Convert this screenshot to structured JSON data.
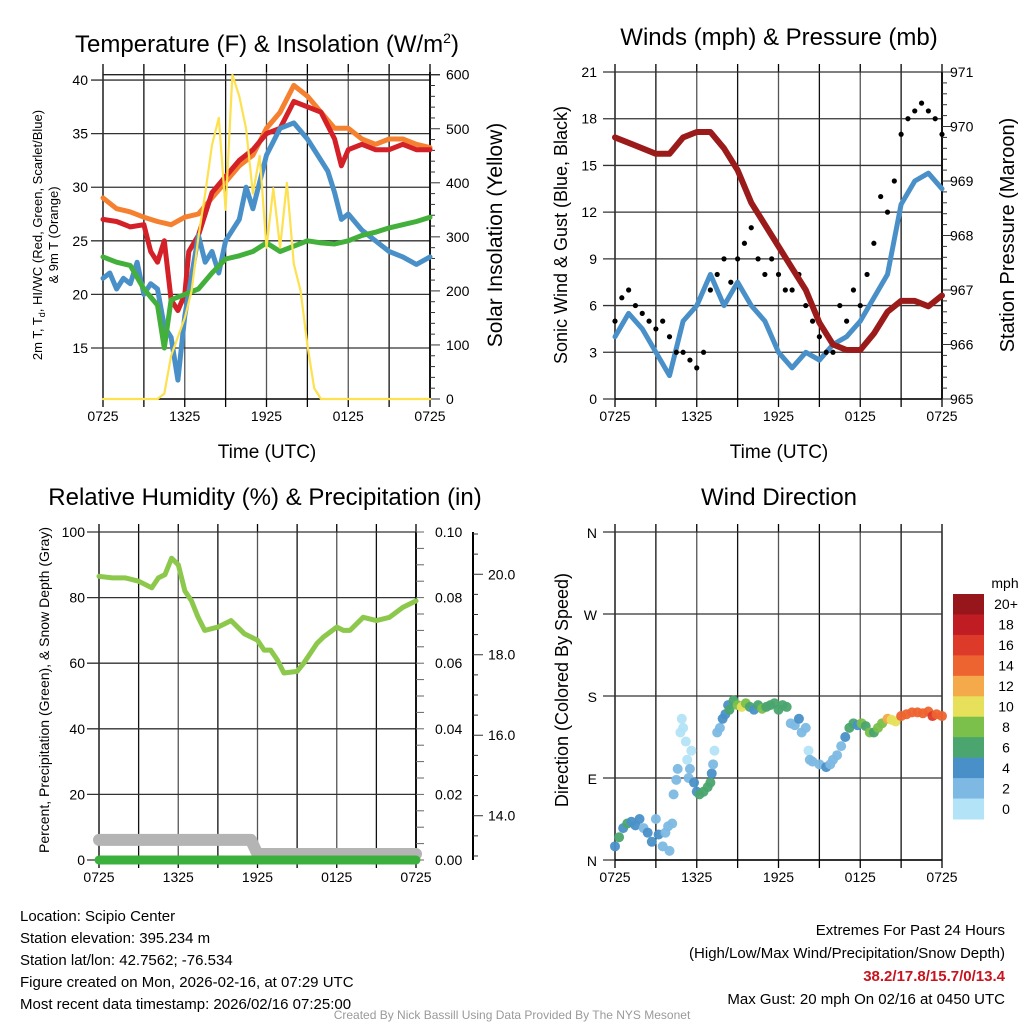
{
  "colors": {
    "red": "#d42027",
    "orange": "#f58030",
    "blue": "#4a90c8",
    "green": "#44b03c",
    "yellow": "#fde14e",
    "black": "#000000",
    "maroon": "#9b1b1b",
    "rh": "#8cc84b",
    "snow": "#b4b4b4",
    "precip": "#3cb03c"
  },
  "x_ticks": {
    "hours": [
      0,
      6,
      12,
      18,
      24
    ],
    "labels": [
      "0725",
      "1325",
      "1925",
      "0125",
      "0725"
    ]
  },
  "chart_data": [
    {
      "id": "temperature",
      "type": "line",
      "title": {
        "main": "Temperature (F) & Insolation (W/m",
        "sup": "2",
        "close": ")"
      },
      "xlabel": "Time (UTC)",
      "ylabel": {
        "l1a": "2m T, T",
        "l1sub": "d",
        "l1b": ", HI/WC (Red, Green, Scarlet/Blue)",
        "l2": "& 9m T (Orange)"
      },
      "ylabel_right": "Solar Insolation (Yellow)",
      "ylim": [
        10.24,
        40.75
      ],
      "ylim_right": [
        0,
        605
      ],
      "yticks": [
        15,
        20,
        25,
        30,
        35,
        40
      ],
      "yticks_right": [
        0,
        100,
        200,
        300,
        400,
        500,
        600
      ],
      "series": [
        {
          "name": "9m T",
          "color": "orange",
          "axis": "left",
          "x": [
            0,
            1,
            2,
            3,
            4,
            5,
            6,
            7,
            8,
            9,
            10,
            11,
            12,
            13,
            14,
            15,
            16,
            17,
            18,
            19,
            20,
            21,
            22,
            23,
            24
          ],
          "y": [
            29,
            28,
            27.7,
            27.2,
            26.8,
            26.5,
            27.2,
            27.5,
            29,
            30.5,
            32,
            33,
            35.5,
            37,
            39.5,
            38.5,
            37,
            35.5,
            35.5,
            34.5,
            34,
            34.5,
            34.5,
            34,
            33.7
          ]
        },
        {
          "name": "2m T",
          "color": "red",
          "axis": "left",
          "x": [
            0,
            1,
            2,
            3,
            3.5,
            4,
            4.5,
            5,
            5.5,
            6,
            6.3,
            7,
            8,
            9,
            10,
            11,
            12,
            13,
            14,
            15,
            16,
            17,
            17.5,
            18,
            19,
            20,
            21,
            22,
            23,
            24
          ],
          "y": [
            27,
            26.8,
            26.3,
            26.5,
            24,
            23,
            25,
            19.5,
            18.5,
            20,
            24,
            25.5,
            29.5,
            31,
            32.5,
            33.5,
            35,
            35.5,
            38,
            37.5,
            37,
            34.5,
            32,
            33.5,
            34,
            33.5,
            33.5,
            34,
            33.5,
            33.5
          ]
        },
        {
          "name": "HI/WC",
          "color": "blue",
          "axis": "left",
          "x": [
            0,
            0.5,
            1,
            1.5,
            2,
            2.5,
            3,
            3.5,
            4,
            4.5,
            5,
            5.5,
            6,
            7,
            7.5,
            8,
            8.5,
            9,
            10,
            10.5,
            11,
            12,
            13,
            14,
            15,
            16,
            16.5,
            17,
            17.5,
            18,
            19,
            20,
            21,
            22,
            23,
            24
          ],
          "y": [
            21.5,
            22,
            20.5,
            21.5,
            21,
            23,
            20,
            21,
            20.5,
            17,
            16,
            12,
            18,
            25.5,
            23,
            24,
            22,
            25,
            27,
            30,
            28,
            33,
            35.5,
            36,
            34.5,
            32.5,
            31.5,
            29.5,
            27,
            27.5,
            26,
            25,
            24,
            23.5,
            22.8,
            23.5
          ]
        },
        {
          "name": "Td",
          "color": "green",
          "axis": "left",
          "x": [
            0,
            1,
            2,
            3,
            4,
            4.5,
            5,
            6,
            7,
            8,
            9,
            10,
            11,
            12,
            13,
            14,
            15,
            16,
            17,
            18,
            19,
            20,
            21,
            22,
            23,
            24
          ],
          "y": [
            23.5,
            23,
            22.7,
            20.5,
            19,
            15,
            19.5,
            20,
            20.5,
            22,
            23.3,
            23.6,
            24,
            24.8,
            24,
            24.5,
            25,
            24.8,
            24.7,
            25,
            25.5,
            25.8,
            26.2,
            26.5,
            26.8,
            27.2
          ]
        },
        {
          "name": "Solar Insolation",
          "color": "yellow",
          "axis": "right",
          "x": [
            0,
            4,
            4.5,
            5,
            6,
            6.5,
            7,
            7.5,
            8,
            8.5,
            9,
            9.5,
            10,
            10.5,
            11,
            11.5,
            12,
            12.5,
            13,
            13.5,
            14,
            14.5,
            15,
            15.5,
            16,
            24
          ],
          "y": [
            0,
            0,
            10,
            80,
            150,
            200,
            300,
            380,
            470,
            520,
            350,
            600,
            560,
            500,
            380,
            450,
            280,
            390,
            280,
            400,
            250,
            200,
            100,
            20,
            0,
            0
          ]
        }
      ]
    },
    {
      "id": "winds",
      "type": "line",
      "title": "Winds (mph) & Pressure (mb)",
      "xlabel": "Time (UTC)",
      "ylabel": "Sonic Wind & Gust (Blue, Black)",
      "ylabel_right": "Station Pressure (Maroon)",
      "ylim": [
        0,
        21
      ],
      "ylim_right": [
        965,
        971
      ],
      "yticks": [
        0,
        3,
        6,
        9,
        12,
        15,
        18,
        21
      ],
      "yticks_right": [
        965,
        966,
        967,
        968,
        969,
        970,
        971
      ],
      "series": [
        {
          "name": "Sonic Wind",
          "color": "blue",
          "axis": "left",
          "x": [
            0,
            1,
            2,
            3,
            4,
            5,
            6,
            7,
            8,
            9,
            10,
            11,
            12,
            13,
            14,
            15,
            16,
            17,
            18,
            19,
            20,
            21,
            22,
            23,
            24
          ],
          "y": [
            4,
            5.5,
            4.5,
            3,
            1.5,
            5,
            6,
            8,
            6,
            7.5,
            6,
            5,
            3,
            2,
            3,
            2.5,
            3.5,
            4,
            5,
            6.5,
            8,
            12.5,
            14,
            14.5,
            13.5
          ]
        },
        {
          "name": "Pressure",
          "color": "maroon",
          "axis": "right",
          "x": [
            0,
            1,
            2,
            3,
            4,
            5,
            6,
            7,
            8,
            9,
            10,
            11,
            12,
            13,
            14,
            15,
            16,
            17,
            18,
            19,
            20,
            21,
            22,
            23,
            24
          ],
          "y": [
            969.8,
            969.7,
            969.6,
            969.5,
            969.5,
            969.8,
            969.9,
            969.9,
            969.6,
            969.2,
            968.6,
            968.2,
            967.8,
            967.4,
            967.0,
            966.4,
            966.0,
            965.9,
            965.9,
            966.2,
            966.6,
            966.8,
            966.8,
            966.7,
            966.9
          ]
        }
      ],
      "gust": {
        "color": "black",
        "step_hours": 0.5,
        "values": [
          5,
          6.5,
          7,
          6,
          5.5,
          5,
          4.5,
          5,
          4,
          3,
          3,
          2.5,
          2,
          3,
          7,
          8,
          9,
          7.5,
          9,
          10,
          11,
          9,
          8,
          9,
          8,
          7,
          7,
          8,
          6,
          5,
          4,
          3,
          3,
          6,
          5,
          7,
          6,
          8,
          10,
          13,
          12,
          14,
          17,
          18,
          18.5,
          19,
          18.5,
          18,
          17
        ]
      }
    },
    {
      "id": "humidity",
      "type": "line",
      "title": "Relative Humidity (%) & Precipitation (in)",
      "ylabel": "Percent, Precipitation (Green), & Snow Depth (Gray)",
      "ylim": [
        0,
        100
      ],
      "ylim_right": [
        0,
        0.1
      ],
      "ylim_snow": [
        12.9,
        21.05
      ],
      "yticks": [
        0,
        20,
        40,
        60,
        80,
        100
      ],
      "yticks_right": [
        "0.00",
        "0.02",
        "0.04",
        "0.06",
        "0.08",
        "0.10"
      ],
      "yticks_snow": [
        "14.0",
        "16.0",
        "18.0",
        "20.0"
      ],
      "series": [
        {
          "name": "Snow Depth",
          "color": "snow",
          "axis": "snow",
          "x": [
            0,
            11.5,
            12,
            24
          ],
          "y": [
            13.4,
            13.4,
            13.05,
            13.05
          ]
        },
        {
          "name": "Precipitation",
          "color": "precip",
          "axis": "right",
          "x": [
            0,
            24
          ],
          "y": [
            0,
            0
          ]
        },
        {
          "name": "Relative Humidity",
          "color": "rh",
          "axis": "left",
          "x": [
            0,
            1,
            2,
            3,
            4,
            4.5,
            5,
            5.5,
            6,
            6.5,
            7,
            7.5,
            8,
            9,
            10,
            11,
            12,
            12.5,
            13,
            13.5,
            14,
            15,
            15.5,
            16,
            16.5,
            17,
            18,
            18.5,
            19,
            20,
            21,
            22,
            23,
            24
          ],
          "y": [
            86.5,
            86,
            86,
            85,
            83,
            86,
            87,
            92,
            90,
            82,
            79,
            74,
            70,
            71,
            73,
            69,
            67,
            64,
            64,
            61,
            57,
            57.5,
            60,
            63,
            66,
            68,
            71,
            70,
            70,
            74,
            73,
            74,
            77,
            79
          ]
        }
      ]
    },
    {
      "id": "wind_direction",
      "type": "scatter",
      "title": "Wind Direction",
      "ylabel": "Direction (Colored By Speed)",
      "ylim": [
        0,
        360
      ],
      "yticks": [
        0,
        90,
        180,
        270,
        360
      ],
      "ytick_labels": [
        "N",
        "E",
        "S",
        "W",
        "N"
      ],
      "colorbar": {
        "title": "mph",
        "labels": [
          "20+",
          "18",
          "16",
          "14",
          "12",
          "10",
          "8",
          "6",
          "4",
          "2",
          "0"
        ],
        "colors": [
          "#b3e3f7",
          "#7db9e3",
          "#4a90c8",
          "#4aa56e",
          "#7ac04a",
          "#e6e05a",
          "#f4a94a",
          "#ee6430",
          "#de3a2a",
          "#c01c24",
          "#96161c"
        ]
      },
      "points_hour_deg_mph": [
        [
          0,
          15,
          4
        ],
        [
          0.3,
          25,
          6
        ],
        [
          0.6,
          35,
          4
        ],
        [
          0.9,
          40,
          6
        ],
        [
          1.2,
          42,
          4
        ],
        [
          1.5,
          38,
          4
        ],
        [
          1.8,
          45,
          4
        ],
        [
          2.1,
          35,
          2
        ],
        [
          2.4,
          30,
          4
        ],
        [
          2.7,
          20,
          4
        ],
        [
          3,
          45,
          2
        ],
        [
          3.2,
          28,
          4
        ],
        [
          3.5,
          15,
          2
        ],
        [
          3.7,
          30,
          2
        ],
        [
          3.9,
          37,
          2
        ],
        [
          4,
          10,
          2
        ],
        [
          4.2,
          40,
          2
        ],
        [
          4.3,
          72,
          2
        ],
        [
          4.5,
          88,
          2
        ],
        [
          4.6,
          100,
          2
        ],
        [
          4.8,
          140,
          0
        ],
        [
          4.9,
          155,
          0
        ],
        [
          5,
          145,
          0
        ],
        [
          5.2,
          130,
          0
        ],
        [
          5.3,
          110,
          0
        ],
        [
          5.4,
          90,
          2
        ],
        [
          5.5,
          100,
          2
        ],
        [
          5.6,
          120,
          0
        ],
        [
          5.8,
          85,
          4
        ],
        [
          6,
          75,
          4
        ],
        [
          6.2,
          72,
          6
        ],
        [
          6.5,
          75,
          6
        ],
        [
          6.8,
          80,
          6
        ],
        [
          7,
          85,
          6
        ],
        [
          7.1,
          95,
          4
        ],
        [
          7.2,
          105,
          2
        ],
        [
          7.3,
          120,
          0
        ],
        [
          7.5,
          140,
          2
        ],
        [
          7.7,
          145,
          2
        ],
        [
          7.9,
          155,
          4
        ],
        [
          8.1,
          160,
          4
        ],
        [
          8.3,
          170,
          4
        ],
        [
          8.4,
          165,
          6
        ],
        [
          8.7,
          175,
          6
        ],
        [
          9,
          170,
          8
        ],
        [
          9.3,
          168,
          10
        ],
        [
          9.6,
          172,
          8
        ],
        [
          9.9,
          168,
          6
        ],
        [
          10.2,
          165,
          4
        ],
        [
          10.5,
          170,
          6
        ],
        [
          10.8,
          166,
          8
        ],
        [
          11.1,
          168,
          6
        ],
        [
          11.4,
          170,
          6
        ],
        [
          11.7,
          172,
          6
        ],
        [
          12,
          165,
          6
        ],
        [
          12.3,
          170,
          6
        ],
        [
          12.6,
          168,
          6
        ],
        [
          12.9,
          150,
          2
        ],
        [
          13.2,
          148,
          2
        ],
        [
          13.5,
          155,
          4
        ],
        [
          13.7,
          140,
          2
        ],
        [
          14,
          145,
          2
        ],
        [
          14.2,
          120,
          0
        ],
        [
          14.3,
          110,
          2
        ],
        [
          14.5,
          108,
          2
        ],
        [
          15,
          105,
          2
        ],
        [
          15.5,
          102,
          4
        ],
        [
          15.8,
          105,
          2
        ],
        [
          16,
          110,
          2
        ],
        [
          16.3,
          115,
          2
        ],
        [
          16.6,
          125,
          2
        ],
        [
          16.9,
          135,
          4
        ],
        [
          17.2,
          145,
          6
        ],
        [
          17.5,
          150,
          6
        ],
        [
          17.8,
          148,
          4
        ],
        [
          18.1,
          150,
          8
        ],
        [
          18.4,
          147,
          6
        ],
        [
          18.7,
          140,
          8
        ],
        [
          19,
          140,
          6
        ],
        [
          19.3,
          145,
          8
        ],
        [
          19.6,
          150,
          8
        ],
        [
          20,
          155,
          12
        ],
        [
          20.3,
          154,
          10
        ],
        [
          20.6,
          152,
          10
        ],
        [
          21,
          158,
          14
        ],
        [
          21.4,
          160,
          14
        ],
        [
          21.8,
          162,
          14
        ],
        [
          22.2,
          162,
          14
        ],
        [
          22.6,
          161,
          14
        ],
        [
          23,
          163,
          14
        ],
        [
          23.3,
          158,
          16
        ],
        [
          23.6,
          160,
          14
        ],
        [
          24,
          158,
          14
        ]
      ]
    }
  ],
  "footer": {
    "location": "Location: Scipio Center",
    "elevation": "Station elevation: 395.234 m",
    "latlon": "Station lat/lon: 42.7562; -76.534",
    "created": "Figure created on Mon, 2026-02-16, at 07:29 UTC",
    "recent": "Most recent data timestamp: 2026/02/16 07:25:00",
    "extremes_title": "Extremes For Past 24 Hours",
    "extremes_legend": "(High/Low/Max Wind/Precipitation/Snow Depth)",
    "extremes_values": "38.2/17.8/15.7/0/13.4",
    "max_gust": "Max Gust: 20 mph On 02/16 at 0450 UTC",
    "credit": "Created By Nick Bassill Using Data Provided By The NYS Mesonet"
  }
}
